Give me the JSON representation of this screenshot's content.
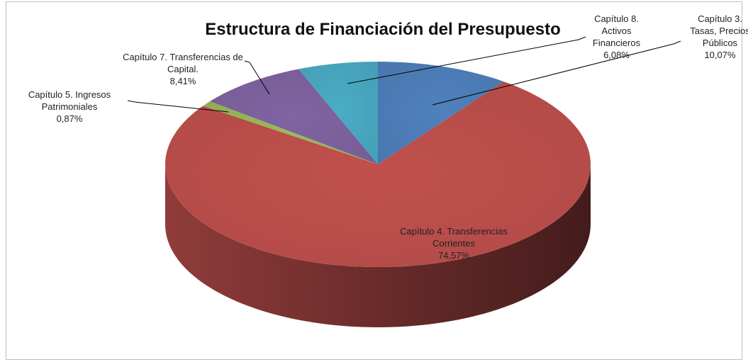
{
  "chart_data": {
    "type": "pie3d",
    "title": "Estructura de Financiación del Presupuesto",
    "categories": [
      "Capítulo 3. Tasas, Precios Públicos",
      "Capítulo 4. Transferencias Corrientes",
      "Capítulo 5. Ingresos Patrimoniales",
      "Capítulo 7. Transferencias de Capital.",
      "Capítulo 8. Activos Financieros"
    ],
    "values": [
      10.07,
      74.57,
      0.87,
      8.41,
      6.08
    ],
    "value_labels": [
      "10,07%",
      "74,57%",
      "0,87%",
      "8,41%",
      "6,08%"
    ],
    "colors": [
      "#4f81bd",
      "#c0504d",
      "#9bbb59",
      "#8064a2",
      "#4bacc6"
    ]
  }
}
